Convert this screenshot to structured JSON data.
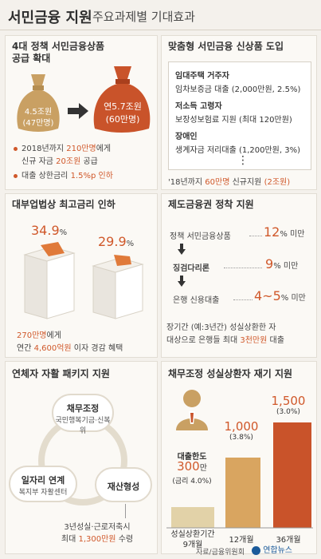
{
  "header": {
    "title": "서민금융 지원",
    "subtitle": "주요과제별 기대효과"
  },
  "sec1": {
    "title_line1": "4대 정책 서민금융상품",
    "title_line2": "공급 확대",
    "bag_left_amount": "4.5조원",
    "bag_left_people": "(47만명)",
    "bag_right_amount": "연5.7조원",
    "bag_right_people": "(60만명)",
    "b1_pre": "2018년까지 ",
    "b1_hl1": "210만명",
    "b1_mid": "에게",
    "b1_l2_pre": "신규 자금 ",
    "b1_hl2": "20조원",
    "b1_l2_post": " 공급",
    "b2_pre": "대출 상한금리 ",
    "b2_hl": "1.5%p 인하",
    "colors": {
      "left_bag": "#c9a063",
      "right_bag": "#c9532a",
      "arrow": "#333333"
    }
  },
  "sec2": {
    "title": "맞춤형 서민금융 신상품 도입",
    "items": [
      {
        "head": "임대주택 거주자",
        "desc": "임차보증금 대출 (2,000만원, 2.5%)"
      },
      {
        "head": "저소득 고령자",
        "desc": "보장성보험료 지원 (최대 120만원)"
      },
      {
        "head": "장애인",
        "desc": "생계자금 저리대출 (1,200만원, 3%)"
      }
    ],
    "dots": "⋮",
    "foot_pre": "'18년까지 ",
    "foot_hl1": "60만명",
    "foot_mid": " 신규지원 ",
    "foot_hl2": "(2조원)"
  },
  "sec3": {
    "title": "대부업법상 최고금리 인하",
    "left_val": "34.9",
    "right_val": "29.9",
    "unit": "%",
    "line1_hl": "270만명",
    "line1_post": "에게",
    "line2_pre": "연간 ",
    "line2_hl": "4,600억원",
    "line2_post": " 이자 경감 혜택"
  },
  "sec4": {
    "title": "제도금융권 정착 지원",
    "rows": [
      {
        "label": "정책 서민금융상품",
        "val": "12",
        "suffix": "% 미만"
      },
      {
        "label": "징검다리론",
        "val": "9",
        "suffix": "% 미만"
      },
      {
        "label": "은행 신용대출",
        "val": "4~5",
        "suffix": "% 미만"
      }
    ],
    "foot1": "장기간 (예:3년간) 성실상환한 자",
    "foot2_pre": "대상으로 은행들 최대 ",
    "foot2_hl": "3천만원",
    "foot2_post": " 대출"
  },
  "sec5": {
    "title": "연체자 자활 패키지 지원",
    "c1_title": "채무조정",
    "c1_sub": "국민행복기금·신복위",
    "c2_title": "일자리 연계",
    "c2_sub": "복지부 자활센터",
    "c3_title": "재산형성",
    "foot1": "3년성실·근로저축시",
    "foot2_pre": "최대 ",
    "foot2_hl": "1,300만원",
    "foot2_post": " 수령"
  },
  "sec6": {
    "title": "채무조정 성실상환자 재기 지원",
    "chart_data": {
      "type": "bar",
      "categories": [
        "성실상환기간 9개월",
        "12개월",
        "36개월"
      ],
      "values": [
        300,
        1000,
        1500
      ],
      "value_labels": [
        "300",
        "1,000",
        "1,500"
      ],
      "rate_labels": [
        "(금리 4.0%)",
        "(3.8%)",
        "(3.0%)"
      ],
      "unit_label": "만",
      "first_label": "대출한도",
      "colors": [
        "#e2d2a8",
        "#d9a560",
        "#c9532a"
      ]
    },
    "cat1_line1": "성실상환기간",
    "cat1_line2": "9개월"
  },
  "footer": {
    "source": "자료/금융위원회",
    "logo": "연합뉴스"
  }
}
